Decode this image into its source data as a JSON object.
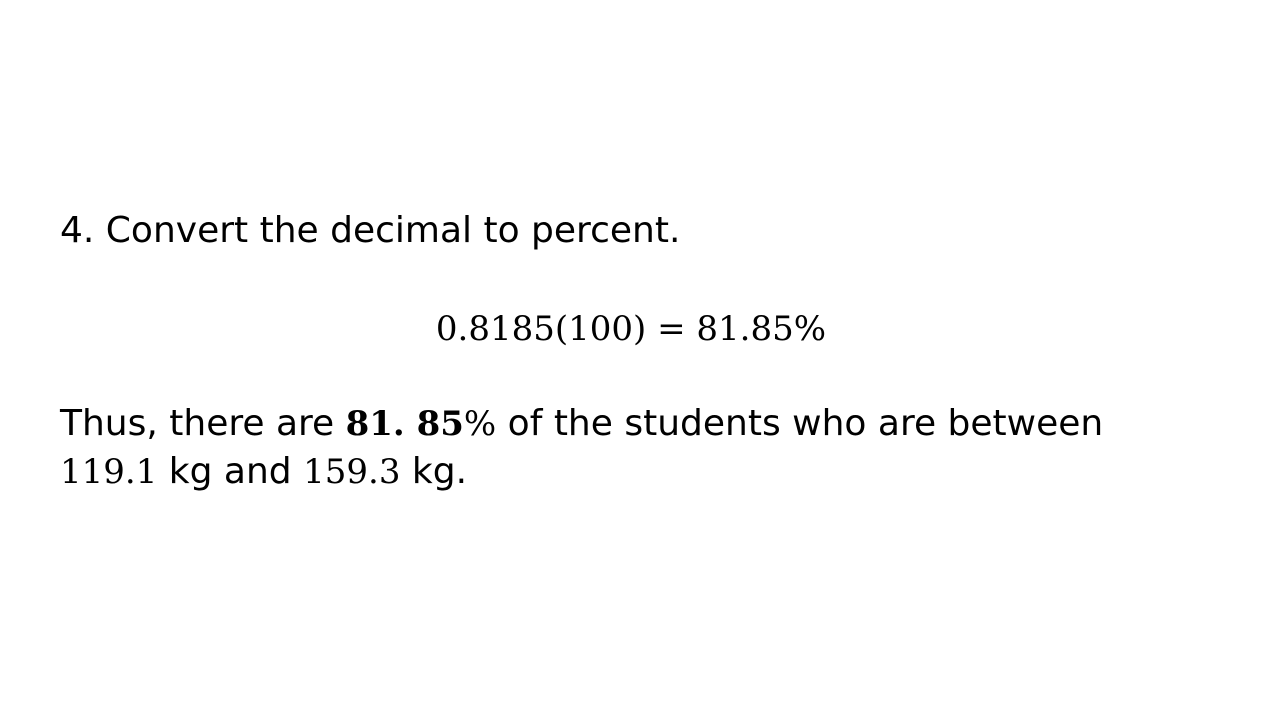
{
  "slide": {
    "step_text": "4. Convert the decimal to percent.",
    "equation": "0.8185(100) = 81.85%",
    "conclusion": {
      "prefix": "Thus, there are ",
      "percent_bold": "81. 85",
      "percent_sign": "%",
      "middle": " of the students who are between",
      "value_low": "119.1",
      "unit_low": " kg and ",
      "value_high": "159.3",
      "unit_high": " kg."
    }
  }
}
